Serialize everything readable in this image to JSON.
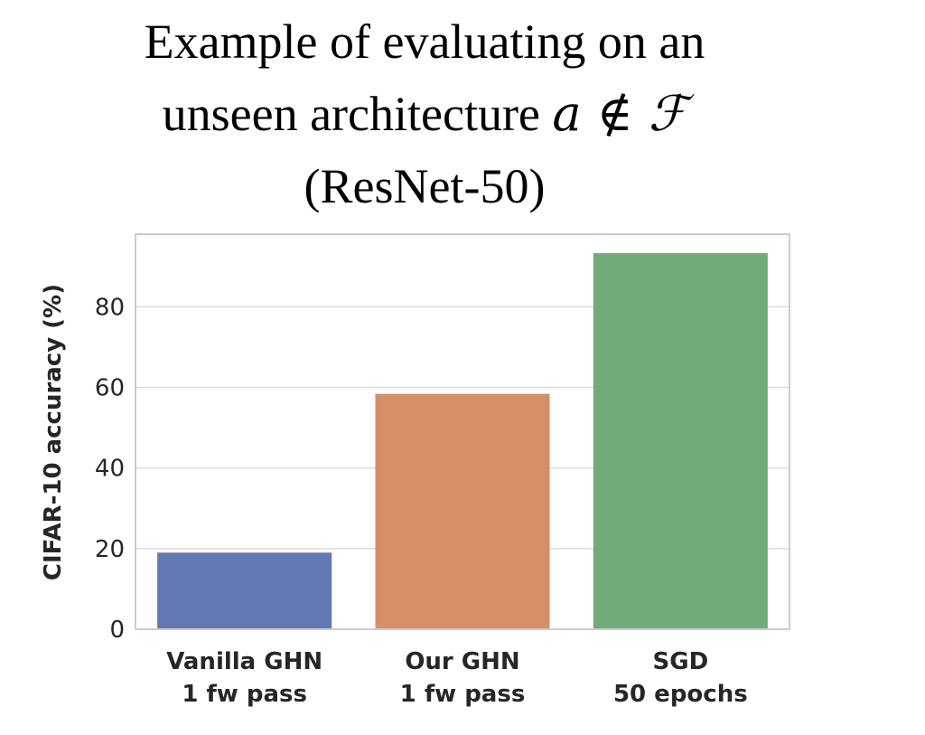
{
  "chart_data": {
    "type": "bar",
    "title_lines": [
      "Example of evaluating on an",
      "unseen architecture",
      "(ResNet-50)"
    ],
    "title_math": "a ∉ ℱ",
    "ylabel": "CIFAR-10 accuracy (%)",
    "xlabel": "",
    "categories": [
      [
        "Vanilla GHN",
        "1 fw pass"
      ],
      [
        "Our GHN",
        "1 fw pass"
      ],
      [
        "SGD",
        "50 epochs"
      ]
    ],
    "values": [
      19,
      58.4,
      93.3
    ],
    "colors": [
      "#6279b6",
      "#d58f67",
      "#72ab7a"
    ],
    "ylim": [
      0,
      98
    ],
    "yticks": [
      0,
      20,
      40,
      60,
      80
    ],
    "grid": true,
    "legend": "none"
  }
}
